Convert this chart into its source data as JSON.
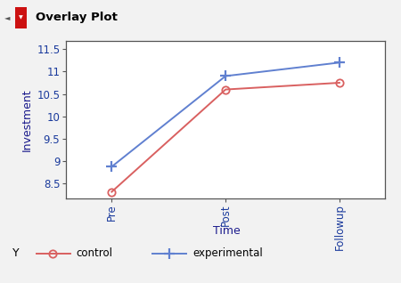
{
  "title": "Overlay Plot",
  "xlabel": "Time",
  "ylabel": "Investment",
  "x_labels": [
    "Pre",
    "Post",
    "Followup"
  ],
  "x_positions": [
    0,
    1,
    2
  ],
  "control_values": [
    8.32,
    10.6,
    10.75
  ],
  "experimental_values": [
    8.88,
    10.9,
    11.2
  ],
  "control_color": "#d96060",
  "experimental_color": "#6080d0",
  "ylim_min": 8.18,
  "ylim_max": 11.68,
  "yticks": [
    8.5,
    9.0,
    9.5,
    10.0,
    10.5,
    11.0,
    11.5
  ],
  "bg_outer": "#f2f2f2",
  "bg_plot": "#ffffff",
  "title_bar_color": "#e8e8e8",
  "text_color_dark": "#1a1a8c",
  "tick_label_color": "#1a3a9c",
  "label_fontsize": 9,
  "tick_fontsize": 8.5
}
